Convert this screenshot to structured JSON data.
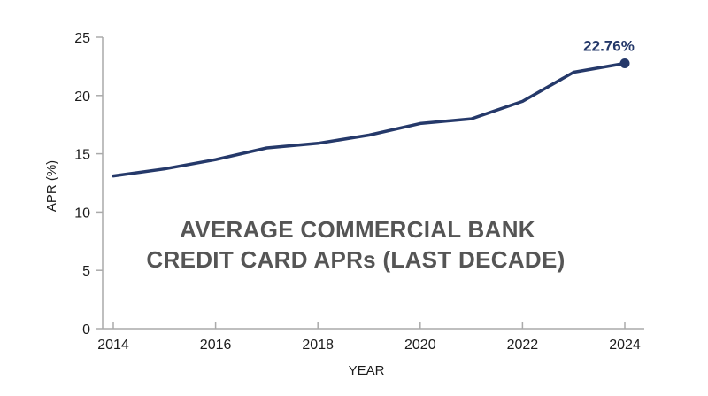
{
  "chart_data": {
    "type": "line",
    "title_lines": [
      "AVERAGE COMMERCIAL BANK",
      "CREDIT CARD APRs  (LAST DECADE)"
    ],
    "xlabel": "YEAR",
    "ylabel": "APR (%)",
    "xlim": [
      2014,
      2024
    ],
    "ylim": [
      0,
      25
    ],
    "x_ticks": [
      "2014",
      "2016",
      "2018",
      "2020",
      "2022",
      "2024"
    ],
    "y_ticks": [
      "0",
      "5",
      "10",
      "15",
      "20",
      "25"
    ],
    "grid": false,
    "series": [
      {
        "x": [
          2014,
          2015,
          2016,
          2017,
          2018,
          2019,
          2020,
          2021,
          2022,
          2023,
          2024
        ],
        "y": [
          13.1,
          13.7,
          14.5,
          15.5,
          15.9,
          16.6,
          17.6,
          18.0,
          19.5,
          22.0,
          22.76
        ],
        "color": "#25396a"
      }
    ],
    "annotation": {
      "x": 2024,
      "y": 22.76,
      "text": "22.76%"
    }
  }
}
